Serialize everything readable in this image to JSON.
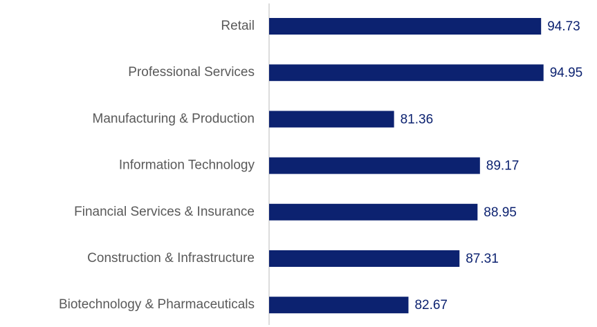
{
  "chart_data": {
    "type": "bar",
    "orientation": "horizontal",
    "categories": [
      "Retail",
      "Professional Services",
      "Manufacturing & Production",
      "Information Technology",
      "Financial Services & Insurance",
      "Construction & Infrastructure",
      "Biotechnology & Pharmaceuticals"
    ],
    "values": [
      94.73,
      94.95,
      81.36,
      89.17,
      88.95,
      87.31,
      82.67
    ],
    "color": "#0c2270",
    "xlim": [
      70,
      100
    ]
  }
}
